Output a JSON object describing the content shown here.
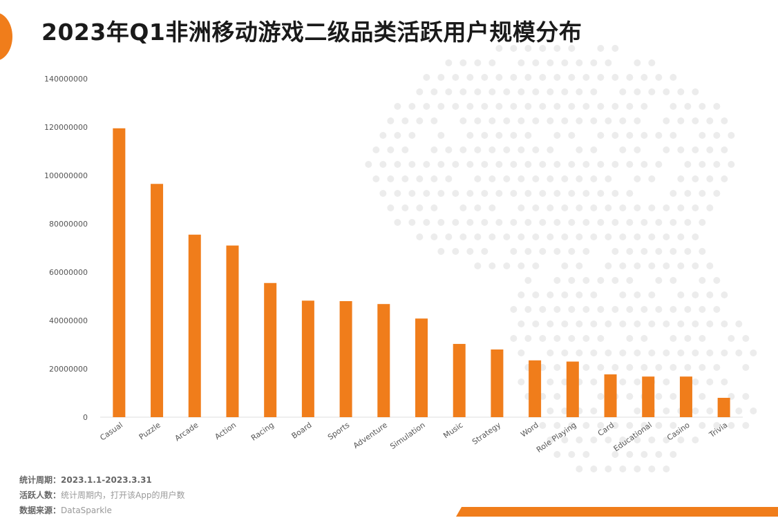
{
  "header": {
    "title": "2023年Q1非洲移动游戏二级品类活跃用户规模分布"
  },
  "colors": {
    "accent": "#f07d1b",
    "bar": "#f07d1b",
    "dots": "#ececec"
  },
  "notes": [
    {
      "label": "统计周期：",
      "value": "2023.1.1-2023.3.31"
    },
    {
      "label": "活跃人数：",
      "value": "统计周期内，打开该App的用户数"
    },
    {
      "label": "数据来源：",
      "value": "DataSparkle"
    }
  ],
  "chart_data": {
    "type": "bar",
    "categories": [
      "Casual",
      "Puzzle",
      "Arcade",
      "Action",
      "Racing",
      "Board",
      "Sports",
      "Adventure",
      "Simulation",
      "Music",
      "Strategy",
      "Word",
      "Role Playing",
      "Card",
      "Educational",
      "Casino",
      "Trivia"
    ],
    "values": [
      119500000,
      96500000,
      75500000,
      71000000,
      55500000,
      48200000,
      48000000,
      46800000,
      40800000,
      30300000,
      28000000,
      23500000,
      23000000,
      17700000,
      16800000,
      16800000,
      8000000
    ],
    "ylim": [
      0,
      140000000
    ],
    "yticks": [
      "0",
      "20000000",
      "40000000",
      "60000000",
      "80000000",
      "100000000",
      "120000000",
      "140000000"
    ],
    "grid": false,
    "legend": "none"
  }
}
